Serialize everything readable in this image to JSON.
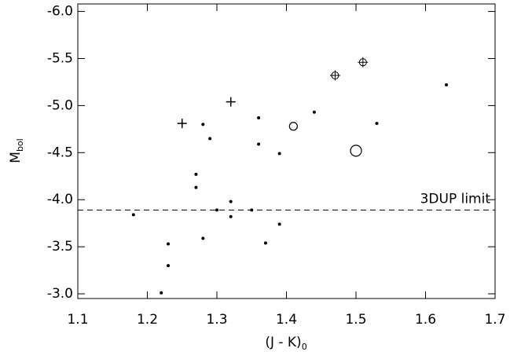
{
  "chart_data": {
    "type": "scatter",
    "x_label": {
      "text": "(J - K)",
      "subscript": "0"
    },
    "y_label": {
      "text": "M",
      "subscript": "bol"
    },
    "xlim": [
      1.1,
      1.7
    ],
    "xticks": [
      1.1,
      1.2,
      1.3,
      1.4,
      1.5,
      1.6,
      1.7
    ],
    "ylim": [
      -2.95,
      -6.08
    ],
    "yticks": [
      {
        "value": -3.0,
        "label": "-3.0"
      },
      {
        "value": -3.5,
        "label": "-3.5"
      },
      {
        "value": -4.0,
        "label": "-4.0"
      },
      {
        "value": -4.5,
        "label": "-4.5"
      },
      {
        "value": -5.0,
        "label": "-5.0"
      },
      {
        "value": -5.5,
        "label": "-5.5"
      },
      {
        "value": -6.0,
        "label": "-6.0"
      }
    ],
    "reference_line": {
      "value": -3.89,
      "label": "3DUP limit",
      "style": "dashed"
    },
    "color": "#000000",
    "series": [
      {
        "marker": "dot",
        "size": 2,
        "x": [
          1.18,
          1.23,
          1.23,
          1.22,
          1.27,
          1.27,
          1.28,
          1.28,
          1.29,
          1.3,
          1.32,
          1.32,
          1.35,
          1.36,
          1.36,
          1.39,
          1.39,
          1.37,
          1.44,
          1.53,
          1.63
        ],
        "values": [
          -3.84,
          -3.53,
          -3.3,
          -3.01,
          -4.27,
          -4.13,
          -4.8,
          -3.59,
          -4.65,
          -3.89,
          -3.98,
          -3.82,
          -3.89,
          -4.87,
          -4.59,
          -4.49,
          -3.74,
          -3.54,
          -4.93,
          -4.81,
          -5.22
        ]
      },
      {
        "marker": "plus",
        "size": 6,
        "x": [
          1.25,
          1.32
        ],
        "values": [
          -4.81,
          -5.04
        ]
      },
      {
        "marker": "circle-plus",
        "size": 4.5,
        "x": [
          1.47,
          1.51
        ],
        "values": [
          -5.32,
          -5.46
        ]
      },
      {
        "marker": "circle",
        "size": 5,
        "x": [
          1.41
        ],
        "values": [
          -4.78
        ]
      },
      {
        "marker": "circle",
        "size": 7,
        "x": [
          1.5
        ],
        "values": [
          -4.52
        ]
      }
    ]
  }
}
